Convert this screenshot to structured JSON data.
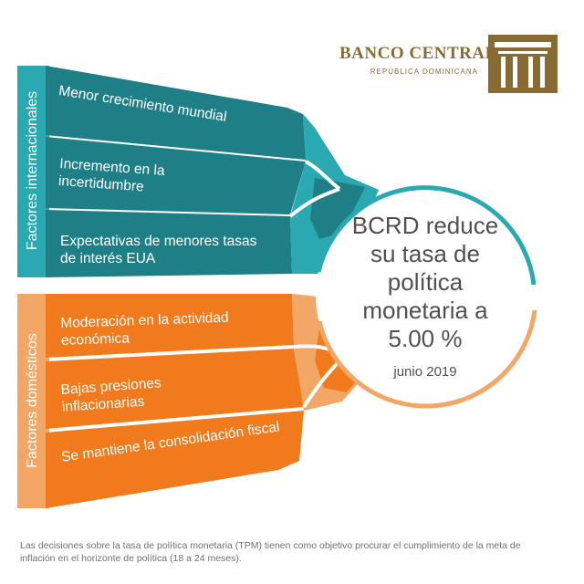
{
  "logo": {
    "name": "BANCO CENTRAL",
    "subtitle": "REPÚBLICA DOMINICANA",
    "color": "#8a6a33"
  },
  "groups": {
    "international": {
      "label": "Factores internacionales",
      "color_dark": "#1f7f86",
      "color_light": "#2aa9b2",
      "items": [
        "Menor crecimiento mundial",
        "Incremento en la incertidumbre",
        "Expectativas de menores tasas de interés EUA"
      ]
    },
    "domestic": {
      "label": "Factores domésticos",
      "color_dark": "#f07a1c",
      "color_light": "#f3a766",
      "items": [
        "Moderación en la actividad económica",
        "Bajas presiones inflacionarias",
        "Se mantiene la consolidación fiscal"
      ]
    }
  },
  "circle": {
    "text": "BCRD reduce su tasa de política monetaria a 5.00 %",
    "date": "junio 2019"
  },
  "footnote": "Las decisiones sobre la tasa de política monetaria (TPM) tienen como objetivo procurar el cumplimiento de la meta de inflación en el horizonte de política (18 a 24 meses)."
}
